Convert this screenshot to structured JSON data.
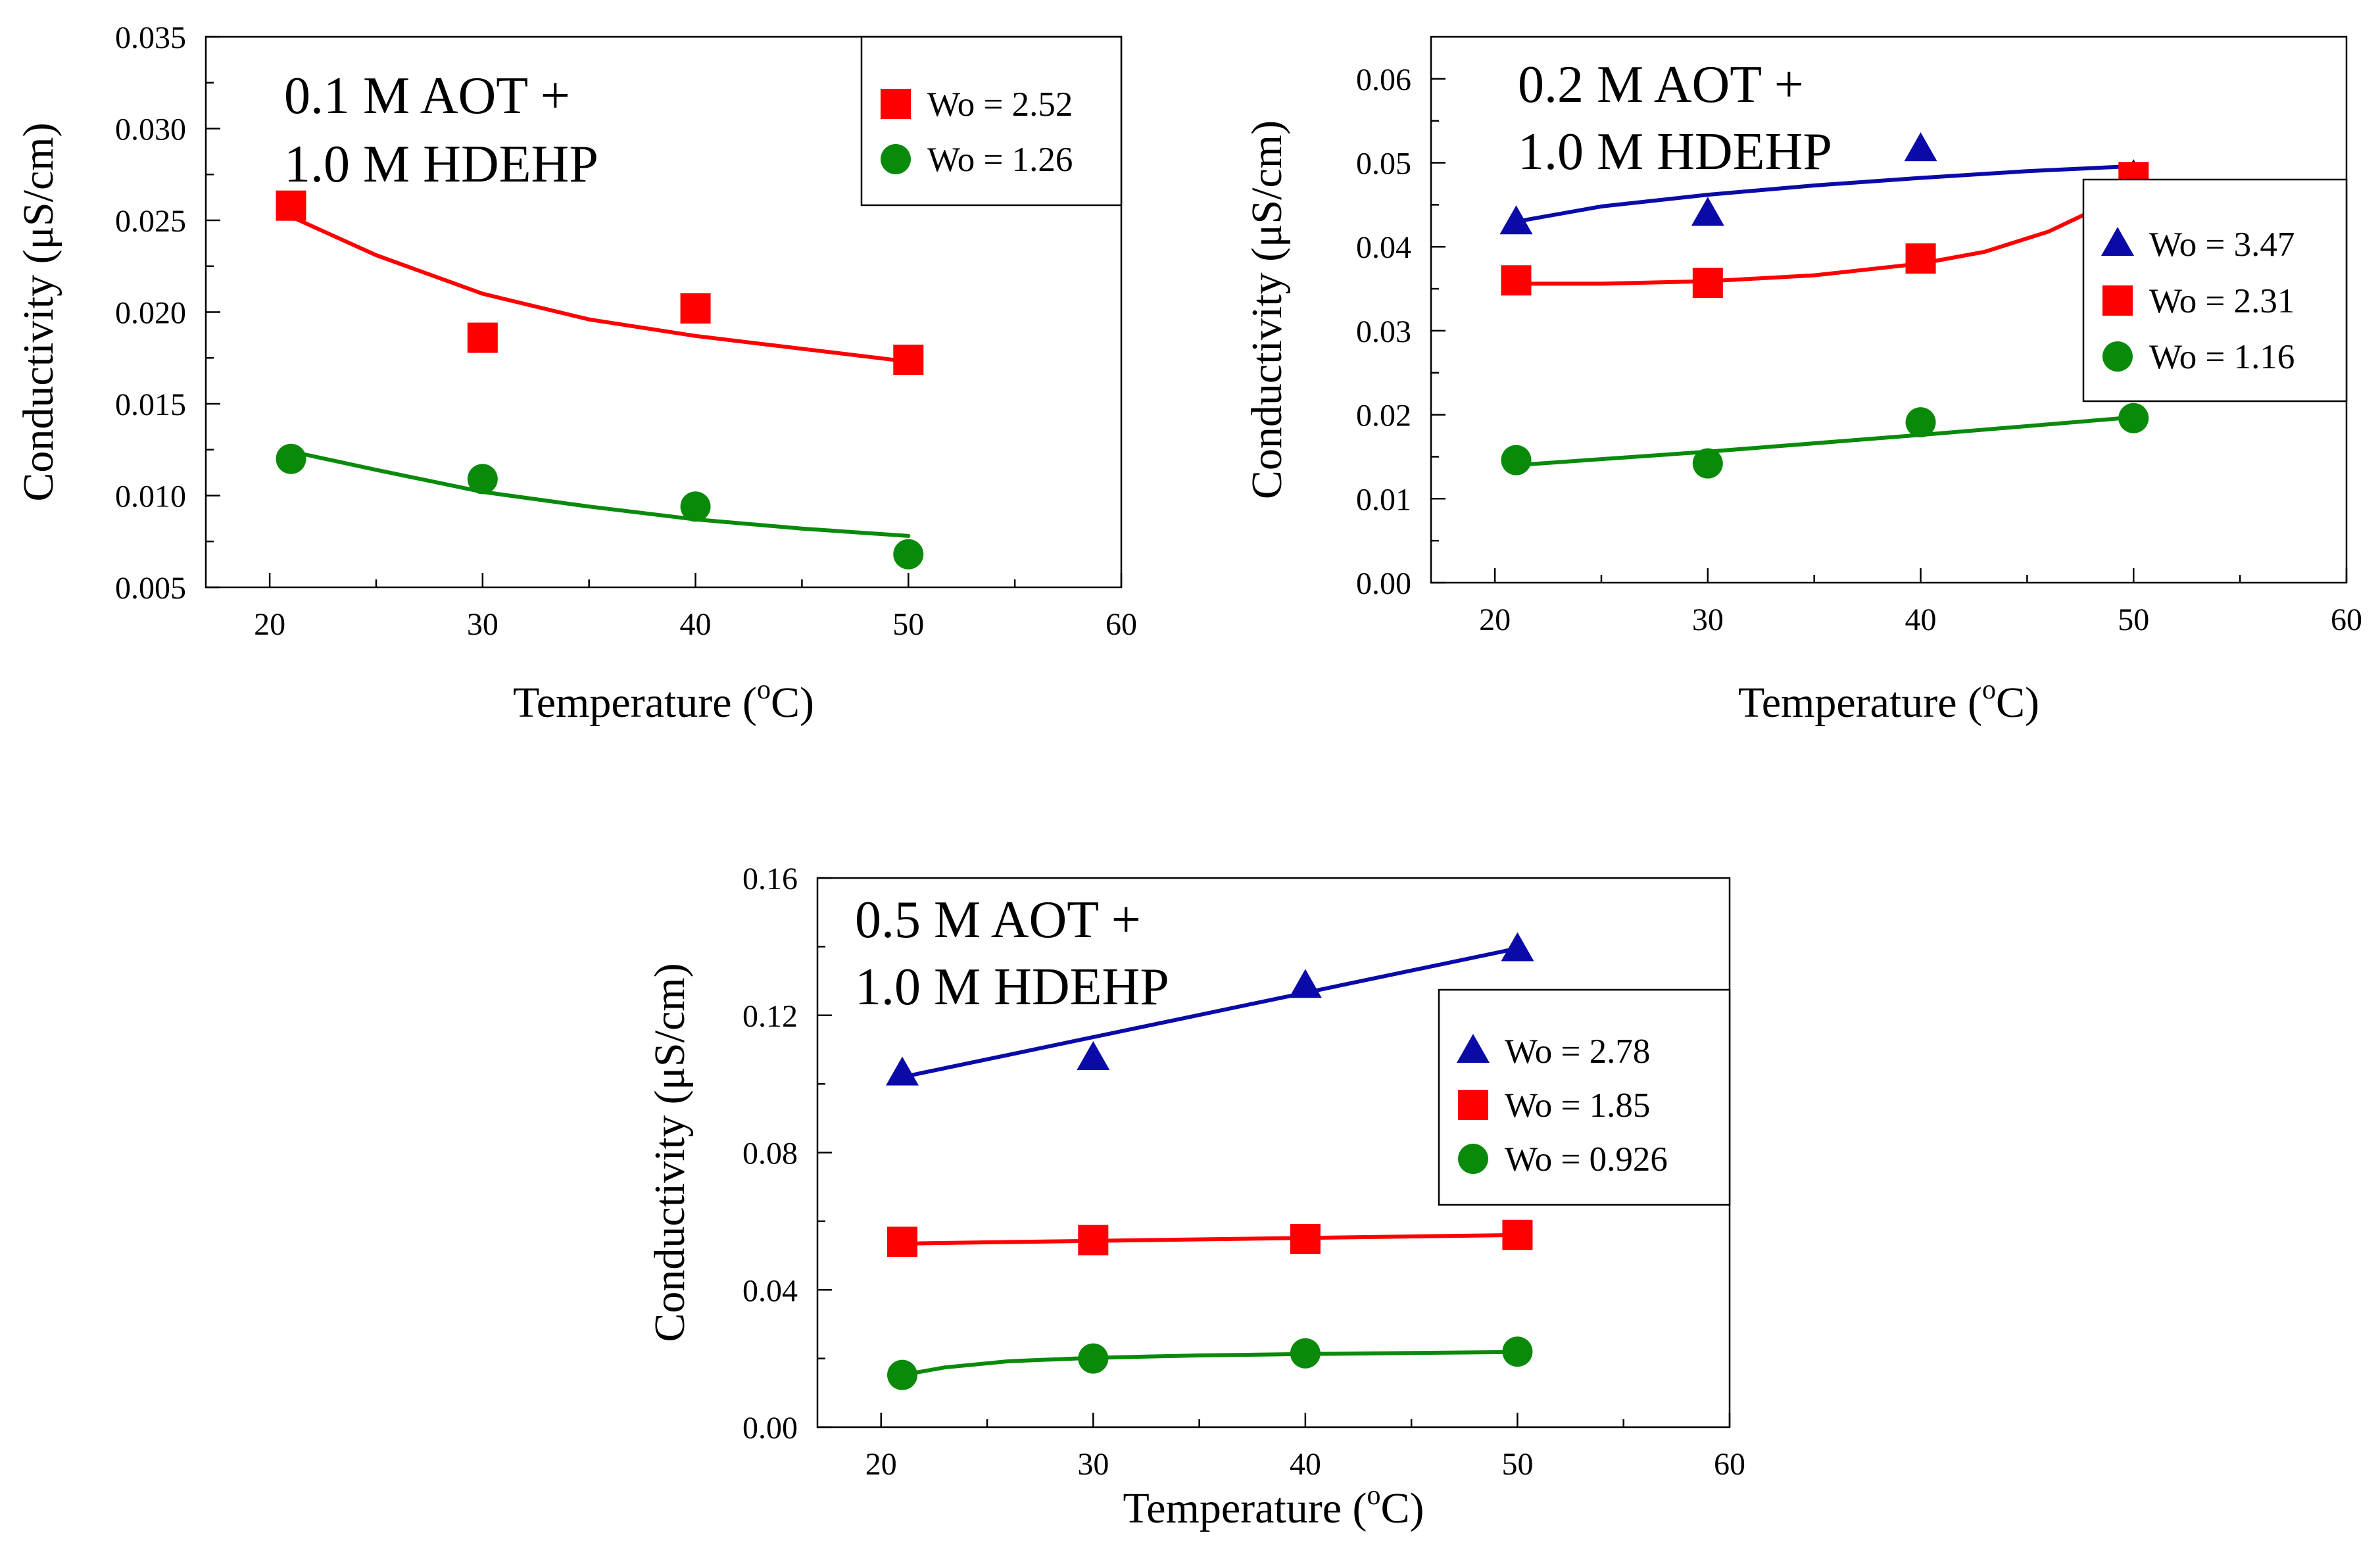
{
  "colors": {
    "red": "#ff0000",
    "green": "#0a8a0a",
    "blue": "#0a0aa8"
  },
  "chart_data": [
    {
      "type": "scatter",
      "title_lines": [
        "0.1 M AOT +",
        "1.0 M HDEHP"
      ],
      "xlabel": "Temperature (",
      "xlabel_sup": "o",
      "xlabel_end": "C)",
      "ylabel": "Conductivity (μS/cm)",
      "xlim": [
        17,
        60
      ],
      "ylim": [
        0.005,
        0.035
      ],
      "xticks": [
        20,
        30,
        40,
        50,
        60
      ],
      "xtick_labels": [
        "20",
        "30",
        "40",
        "50",
        "60"
      ],
      "yticks": [
        0.005,
        0.01,
        0.015,
        0.02,
        0.025,
        0.03,
        0.035
      ],
      "ytick_labels": [
        "0.005",
        "0.010",
        "0.015",
        "0.020",
        "0.025",
        "0.030",
        "0.035"
      ],
      "legend_position": "top-right",
      "series": [
        {
          "name": "Wo = 2.52",
          "marker": "square",
          "color": "#ff0000",
          "x": [
            21,
            30,
            40,
            50
          ],
          "y": [
            0.0258,
            0.0186,
            0.0202,
            0.0174
          ],
          "fit_x": [
            21,
            25,
            30,
            35,
            40,
            45,
            50
          ],
          "fit_y": [
            0.0252,
            0.0231,
            0.021,
            0.0196,
            0.0187,
            0.018,
            0.0173
          ]
        },
        {
          "name": "Wo = 1.26",
          "marker": "circle",
          "color": "#0a8a0a",
          "x": [
            21,
            30,
            40,
            50
          ],
          "y": [
            0.012,
            0.0109,
            0.0094,
            0.0068
          ],
          "fit_x": [
            21,
            25,
            30,
            35,
            40,
            45,
            50
          ],
          "fit_y": [
            0.0124,
            0.0114,
            0.0102,
            0.0094,
            0.0087,
            0.0082,
            0.0078
          ]
        }
      ]
    },
    {
      "type": "scatter",
      "title_lines": [
        "0.2 M AOT +",
        "1.0 M HDEHP"
      ],
      "xlabel": "Temperature (",
      "xlabel_sup": "o",
      "xlabel_end": "C)",
      "ylabel": "Conductivity (μS/cm)",
      "xlim": [
        17,
        60
      ],
      "ylim": [
        0.0,
        0.065
      ],
      "xticks": [
        20,
        30,
        40,
        50,
        60
      ],
      "xtick_labels": [
        "20",
        "30",
        "40",
        "50",
        "60"
      ],
      "yticks": [
        0.0,
        0.01,
        0.02,
        0.03,
        0.04,
        0.05,
        0.06
      ],
      "ytick_labels": [
        "0.00",
        "0.01",
        "0.02",
        "0.03",
        "0.04",
        "0.05",
        "0.06"
      ],
      "legend_position": "right",
      "series": [
        {
          "name": "Wo = 3.47",
          "marker": "triangle",
          "color": "#0a0aa8",
          "x": [
            21,
            30,
            40,
            50
          ],
          "y": [
            0.0429,
            0.0439,
            0.0516,
            0.0484
          ],
          "fit_x": [
            21,
            25,
            30,
            35,
            40,
            45,
            50
          ],
          "fit_y": [
            0.043,
            0.0448,
            0.0462,
            0.0473,
            0.0482,
            0.049,
            0.0496
          ]
        },
        {
          "name": "Wo = 2.31",
          "marker": "square",
          "color": "#ff0000",
          "x": [
            21,
            30,
            40,
            50
          ],
          "y": [
            0.036,
            0.0357,
            0.0386,
            0.0483
          ],
          "fit_x": [
            21,
            25,
            30,
            35,
            40,
            43,
            46,
            48,
            50
          ],
          "fit_y": [
            0.0356,
            0.0356,
            0.0359,
            0.0366,
            0.038,
            0.0394,
            0.0418,
            0.0442,
            0.0482
          ]
        },
        {
          "name": "Wo = 1.16",
          "marker": "circle",
          "color": "#0a8a0a",
          "x": [
            21,
            30,
            40,
            50
          ],
          "y": [
            0.0146,
            0.0142,
            0.0191,
            0.0196
          ],
          "fit_x": [
            21,
            30,
            40,
            50
          ],
          "fit_y": [
            0.014,
            0.0156,
            0.0176,
            0.0197
          ]
        }
      ]
    },
    {
      "type": "scatter",
      "title_lines": [
        "0.5 M AOT +",
        "1.0 M HDEHP"
      ],
      "xlabel": "Temperature (",
      "xlabel_sup": "o",
      "xlabel_end": "C)",
      "ylabel": "Conductivity (μS/cm)",
      "xlim": [
        17,
        60
      ],
      "ylim": [
        0.0,
        0.16
      ],
      "xticks": [
        20,
        30,
        40,
        50,
        60
      ],
      "xtick_labels": [
        "20",
        "30",
        "40",
        "50",
        "60"
      ],
      "yticks": [
        0.0,
        0.04,
        0.08,
        0.12,
        0.16
      ],
      "ytick_labels": [
        "0.00",
        "0.04",
        "0.08",
        "0.12",
        "0.16"
      ],
      "legend_position": "right",
      "series": [
        {
          "name": "Wo = 2.78",
          "marker": "triangle",
          "color": "#0a0aa8",
          "x": [
            21,
            30,
            40,
            50
          ],
          "y": [
            0.103,
            0.1075,
            0.1285,
            0.1392
          ],
          "fit_x": [
            21,
            50
          ],
          "fit_y": [
            0.102,
            0.1395
          ]
        },
        {
          "name": "Wo = 1.85",
          "marker": "square",
          "color": "#ff0000",
          "x": [
            21,
            30,
            40,
            50
          ],
          "y": [
            0.054,
            0.0545,
            0.0548,
            0.056
          ],
          "fit_x": [
            21,
            50
          ],
          "fit_y": [
            0.0535,
            0.056
          ]
        },
        {
          "name": "Wo = 0.926",
          "marker": "circle",
          "color": "#0a8a0a",
          "x": [
            21,
            30,
            40,
            50
          ],
          "y": [
            0.0152,
            0.02,
            0.0215,
            0.022
          ],
          "fit_x": [
            21,
            23,
            26,
            30,
            35,
            40,
            45,
            50
          ],
          "fit_y": [
            0.0152,
            0.0174,
            0.0192,
            0.0202,
            0.0209,
            0.0213,
            0.0216,
            0.0219
          ]
        }
      ]
    }
  ]
}
